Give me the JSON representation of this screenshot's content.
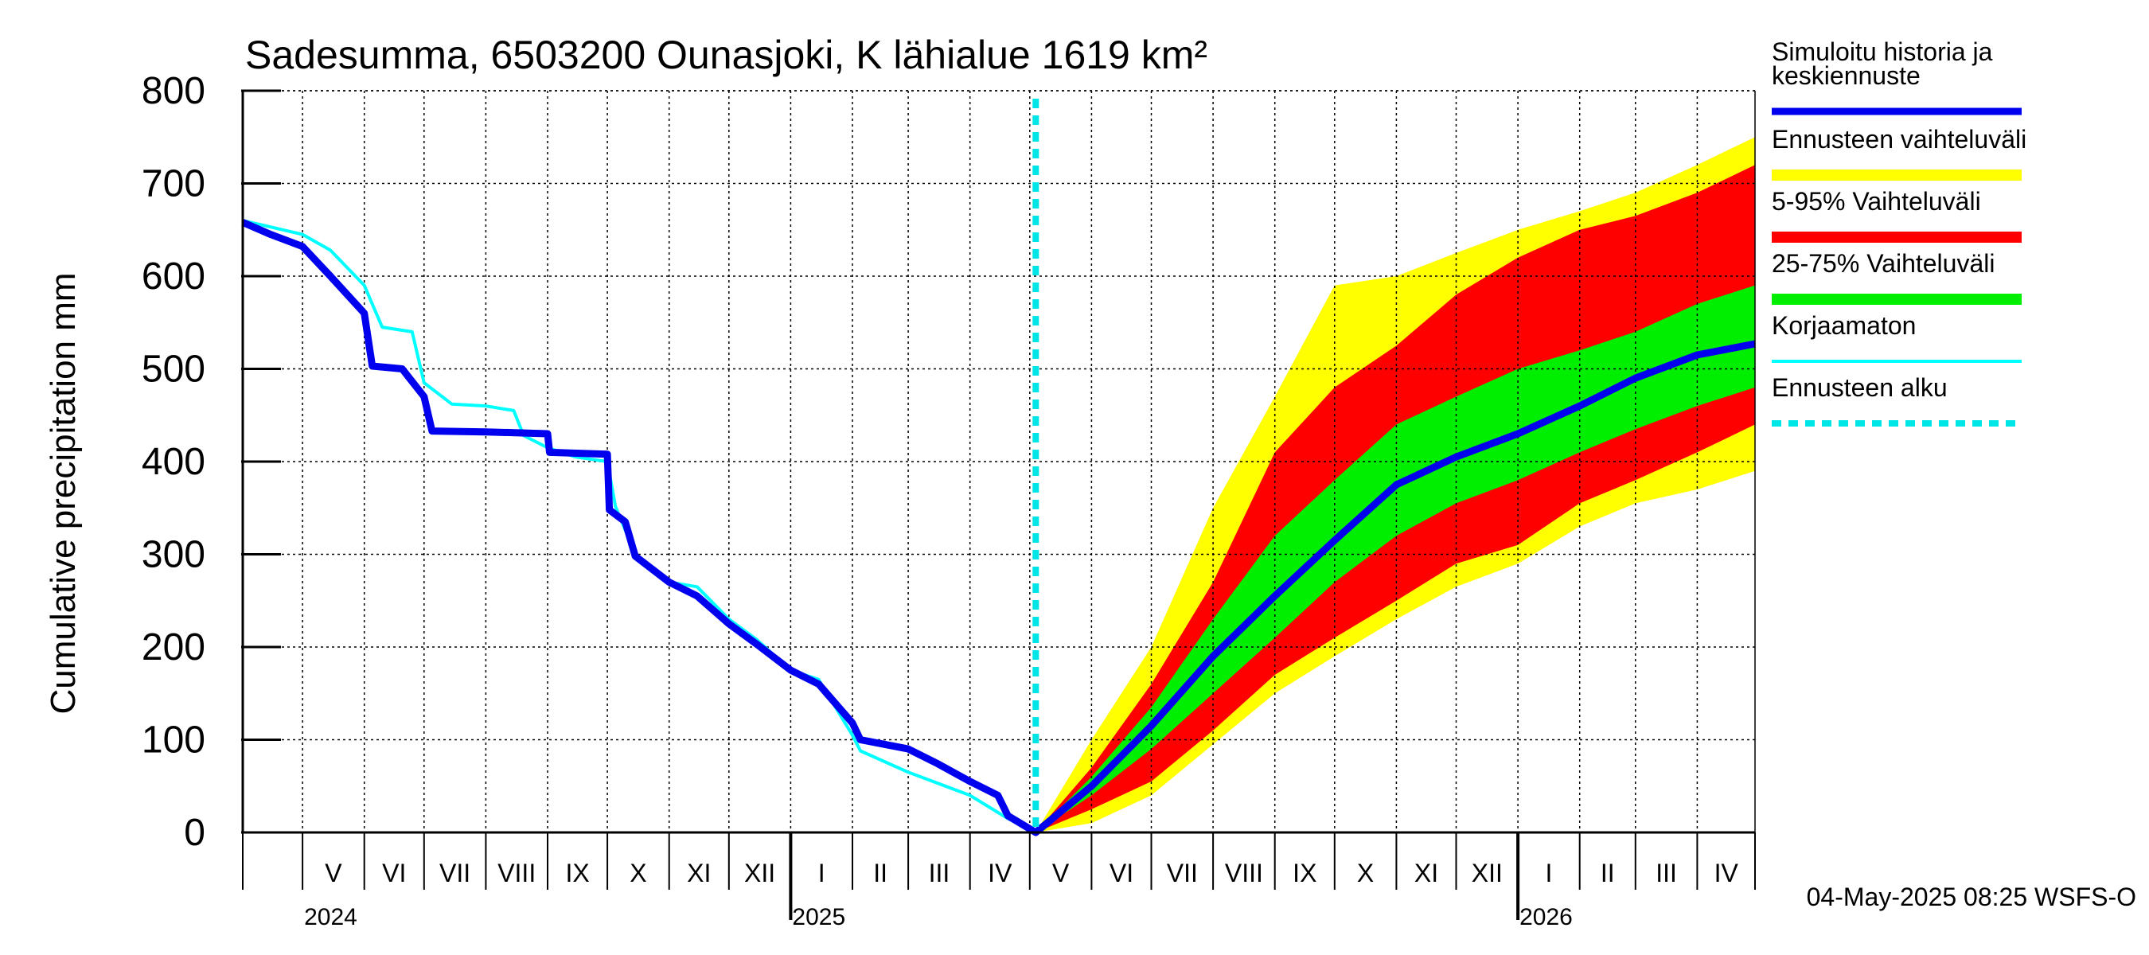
{
  "chart_data": {
    "type": "area",
    "title": "Sadesumma, 6503200 Ounasjoki, K lähialue 1619 km²",
    "ylabel": "Cumulative precipitation   mm",
    "ylim": [
      0,
      800
    ],
    "yticks": [
      0,
      100,
      200,
      300,
      400,
      500,
      600,
      700,
      800
    ],
    "grid": true,
    "x_range": [
      "2024-04-01",
      "2026-04-30"
    ],
    "forecast_start": "2025-05-04",
    "month_labels": [
      {
        "date": "2024-05-01",
        "label": "V"
      },
      {
        "date": "2024-06-01",
        "label": "VI"
      },
      {
        "date": "2024-07-01",
        "label": "VII"
      },
      {
        "date": "2024-08-01",
        "label": "VIII"
      },
      {
        "date": "2024-09-01",
        "label": "IX"
      },
      {
        "date": "2024-10-01",
        "label": "X"
      },
      {
        "date": "2024-11-01",
        "label": "XI"
      },
      {
        "date": "2024-12-01",
        "label": "XII"
      },
      {
        "date": "2025-01-01",
        "label": "I"
      },
      {
        "date": "2025-02-01",
        "label": "II"
      },
      {
        "date": "2025-03-01",
        "label": "III"
      },
      {
        "date": "2025-04-01",
        "label": "IV"
      },
      {
        "date": "2025-05-01",
        "label": "V"
      },
      {
        "date": "2025-06-01",
        "label": "VI"
      },
      {
        "date": "2025-07-01",
        "label": "VII"
      },
      {
        "date": "2025-08-01",
        "label": "VIII"
      },
      {
        "date": "2025-09-01",
        "label": "IX"
      },
      {
        "date": "2025-10-01",
        "label": "X"
      },
      {
        "date": "2025-11-01",
        "label": "XI"
      },
      {
        "date": "2025-12-01",
        "label": "XII"
      },
      {
        "date": "2026-01-01",
        "label": "I"
      },
      {
        "date": "2026-02-01",
        "label": "II"
      },
      {
        "date": "2026-03-01",
        "label": "III"
      },
      {
        "date": "2026-04-01",
        "label": "IV"
      }
    ],
    "year_labels": [
      {
        "date": "2024-05-01",
        "label": "2024"
      },
      {
        "date": "2025-01-01",
        "label": "2025"
      },
      {
        "date": "2026-01-01",
        "label": "2026"
      }
    ],
    "series": [
      {
        "name": "Simuloitu historia ja keskiennuste",
        "color": "#0000ee",
        "points": [
          [
            "2024-04-01",
            658
          ],
          [
            "2024-04-15",
            645
          ],
          [
            "2024-05-01",
            632
          ],
          [
            "2024-05-15",
            600
          ],
          [
            "2024-06-01",
            560
          ],
          [
            "2024-06-05",
            503
          ],
          [
            "2024-06-20",
            500
          ],
          [
            "2024-07-01",
            470
          ],
          [
            "2024-07-05",
            433
          ],
          [
            "2024-08-01",
            432
          ],
          [
            "2024-09-01",
            430
          ],
          [
            "2024-09-02",
            410
          ],
          [
            "2024-10-01",
            408
          ],
          [
            "2024-10-02",
            348
          ],
          [
            "2024-10-10",
            335
          ],
          [
            "2024-10-15",
            298
          ],
          [
            "2024-11-01",
            270
          ],
          [
            "2024-11-15",
            255
          ],
          [
            "2024-12-01",
            225
          ],
          [
            "2024-12-15",
            203
          ],
          [
            "2025-01-01",
            175
          ],
          [
            "2025-01-15",
            160
          ],
          [
            "2025-02-01",
            118
          ],
          [
            "2025-02-05",
            100
          ],
          [
            "2025-03-01",
            90
          ],
          [
            "2025-03-15",
            75
          ],
          [
            "2025-04-01",
            55
          ],
          [
            "2025-04-15",
            40
          ],
          [
            "2025-04-20",
            18
          ],
          [
            "2025-05-04",
            0
          ],
          [
            "2025-06-01",
            50
          ],
          [
            "2025-07-01",
            115
          ],
          [
            "2025-08-01",
            190
          ],
          [
            "2025-09-01",
            255
          ],
          [
            "2025-10-01",
            315
          ],
          [
            "2025-11-01",
            375
          ],
          [
            "2025-12-01",
            405
          ],
          [
            "2026-01-01",
            430
          ],
          [
            "2026-02-01",
            460
          ],
          [
            "2026-03-01",
            490
          ],
          [
            "2026-04-01",
            515
          ],
          [
            "2026-04-30",
            527
          ]
        ]
      },
      {
        "name": "Korjaamaton",
        "color": "#00ffff",
        "points": [
          [
            "2024-04-01",
            660
          ],
          [
            "2024-05-01",
            645
          ],
          [
            "2024-05-15",
            628
          ],
          [
            "2024-06-01",
            590
          ],
          [
            "2024-06-10",
            545
          ],
          [
            "2024-06-25",
            540
          ],
          [
            "2024-07-01",
            485
          ],
          [
            "2024-07-15",
            462
          ],
          [
            "2024-08-01",
            460
          ],
          [
            "2024-08-15",
            455
          ],
          [
            "2024-08-20",
            428
          ],
          [
            "2024-09-01",
            415
          ],
          [
            "2024-09-15",
            405
          ],
          [
            "2024-10-01",
            400
          ],
          [
            "2024-10-05",
            352
          ],
          [
            "2024-10-15",
            300
          ],
          [
            "2024-11-01",
            270
          ],
          [
            "2024-11-15",
            265
          ],
          [
            "2024-12-01",
            230
          ],
          [
            "2024-12-15",
            208
          ],
          [
            "2025-01-01",
            175
          ],
          [
            "2025-01-15",
            165
          ],
          [
            "2025-02-01",
            105
          ],
          [
            "2025-02-05",
            88
          ],
          [
            "2025-03-01",
            65
          ],
          [
            "2025-04-01",
            40
          ],
          [
            "2025-04-20",
            15
          ],
          [
            "2025-05-04",
            0
          ]
        ]
      }
    ],
    "bands": [
      {
        "name": "Ennusteen vaihteluväli",
        "color": "#ffff00",
        "points": [
          [
            "2025-05-04",
            0,
            0
          ],
          [
            "2025-06-01",
            10,
            100
          ],
          [
            "2025-07-01",
            40,
            200
          ],
          [
            "2025-08-01",
            95,
            350
          ],
          [
            "2025-09-01",
            150,
            470
          ],
          [
            "2025-10-01",
            190,
            590
          ],
          [
            "2025-11-01",
            230,
            600
          ],
          [
            "2025-12-01",
            265,
            625
          ],
          [
            "2026-01-01",
            290,
            650
          ],
          [
            "2026-02-01",
            330,
            670
          ],
          [
            "2026-03-01",
            355,
            690
          ],
          [
            "2026-04-01",
            370,
            720
          ],
          [
            "2026-04-30",
            390,
            750
          ]
        ]
      },
      {
        "name": "5-95% Vaihteluväli",
        "color": "#ff0000",
        "points": [
          [
            "2025-05-04",
            0,
            0
          ],
          [
            "2025-06-01",
            25,
            70
          ],
          [
            "2025-07-01",
            55,
            160
          ],
          [
            "2025-08-01",
            110,
            270
          ],
          [
            "2025-09-01",
            170,
            410
          ],
          [
            "2025-10-01",
            210,
            480
          ],
          [
            "2025-11-01",
            250,
            525
          ],
          [
            "2025-12-01",
            290,
            580
          ],
          [
            "2026-01-01",
            310,
            620
          ],
          [
            "2026-02-01",
            355,
            650
          ],
          [
            "2026-03-01",
            380,
            665
          ],
          [
            "2026-04-01",
            410,
            690
          ],
          [
            "2026-04-30",
            440,
            720
          ]
        ]
      },
      {
        "name": "25-75% Vaihteluväli",
        "color": "#00ee00",
        "points": [
          [
            "2025-05-04",
            0,
            0
          ],
          [
            "2025-06-01",
            40,
            60
          ],
          [
            "2025-07-01",
            90,
            135
          ],
          [
            "2025-08-01",
            150,
            230
          ],
          [
            "2025-09-01",
            210,
            320
          ],
          [
            "2025-10-01",
            270,
            380
          ],
          [
            "2025-11-01",
            320,
            440
          ],
          [
            "2025-12-01",
            355,
            470
          ],
          [
            "2026-01-01",
            380,
            500
          ],
          [
            "2026-02-01",
            410,
            520
          ],
          [
            "2026-03-01",
            435,
            540
          ],
          [
            "2026-04-01",
            460,
            570
          ],
          [
            "2026-04-30",
            480,
            590
          ]
        ]
      }
    ],
    "legend": {
      "placement": "right",
      "items": [
        {
          "label_lines": [
            "Simuloitu historia ja",
            "keskiennuste"
          ],
          "color": "#0000ee",
          "style": "line-thick"
        },
        {
          "label_lines": [
            "Ennusteen vaihteluväli"
          ],
          "color": "#ffff00",
          "style": "band"
        },
        {
          "label_lines": [
            "5-95% Vaihteluväli"
          ],
          "color": "#ff0000",
          "style": "band"
        },
        {
          "label_lines": [
            "25-75% Vaihteluväli"
          ],
          "color": "#00ee00",
          "style": "band"
        },
        {
          "label_lines": [
            "Korjaamaton"
          ],
          "color": "#00ffff",
          "style": "line-thin"
        },
        {
          "label_lines": [
            "Ennusteen alku"
          ],
          "color": "#00e5e5",
          "style": "dashed"
        }
      ]
    },
    "footer": "04-May-2025 08:25 WSFS-O"
  }
}
